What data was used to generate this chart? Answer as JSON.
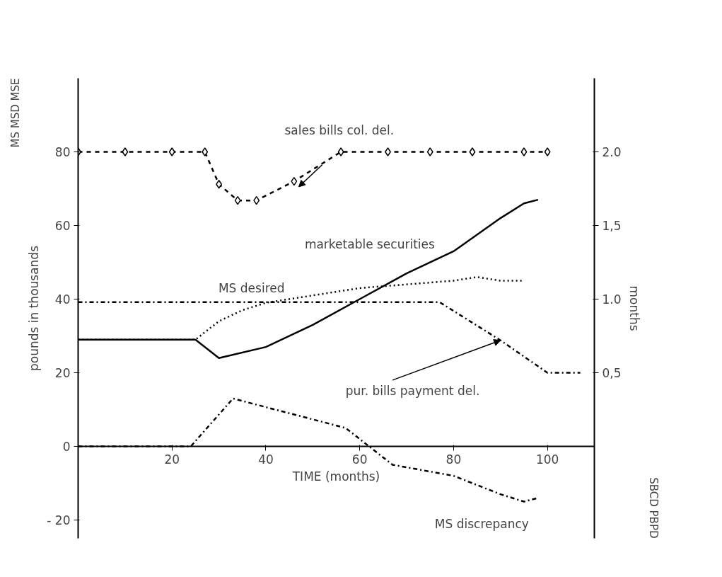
{
  "chart_data": {
    "type": "line",
    "ylabel": "pounds in thousands",
    "y2label": "months",
    "xlabel": "TIME (months)",
    "annotations": [
      "MS MSD MSE",
      "SBCD PBPD"
    ],
    "xlim": [
      0,
      110
    ],
    "xticks": [
      20,
      40,
      60,
      80,
      100
    ],
    "ylim": [
      -25,
      100
    ],
    "yticks": [
      {
        "value": -20,
        "label": "- 20"
      },
      0,
      20,
      40,
      60,
      80
    ],
    "y2lim": [
      -0.625,
      2.5
    ],
    "y2ticks": [
      {
        "value": 0.5,
        "label": "0,5"
      },
      {
        "value": 1.0,
        "label": "1.0"
      },
      {
        "value": 1.5,
        "label": "1,5"
      },
      {
        "value": 2.0,
        "label": "2.0"
      }
    ],
    "grid": false,
    "series": [
      {
        "name": "sales bills col. del.",
        "color": "#000000",
        "axis": "y2",
        "line_style": "dashed",
        "marker": "diamond",
        "x": [
          0,
          10,
          20,
          27,
          30,
          34,
          38,
          46,
          56,
          66,
          75,
          84,
          95,
          100
        ],
        "values": [
          2.0,
          2.0,
          2.0,
          2.0,
          1.78,
          1.67,
          1.67,
          1.8,
          2.0,
          2.0,
          2.0,
          2.0,
          2.0,
          2.0
        ]
      },
      {
        "name": "marketable securities",
        "color": "#000000",
        "line_style": "solid",
        "x": [
          0,
          25,
          30,
          40,
          50,
          60,
          70,
          80,
          90,
          95,
          98
        ],
        "values": [
          29,
          29,
          24,
          27,
          33,
          40,
          47,
          53,
          62,
          66,
          67
        ]
      },
      {
        "name": "MS desired",
        "color": "#000000",
        "line_style": "dotted",
        "x": [
          0,
          25,
          30,
          35,
          40,
          45,
          50,
          60,
          70,
          80,
          85,
          90,
          95
        ],
        "values": [
          29,
          29,
          34,
          37,
          39,
          40,
          41,
          43,
          44,
          45,
          46,
          45,
          45
        ]
      },
      {
        "name": "pur. bills payment del.",
        "color": "#000000",
        "axis": "y2",
        "line_style": "dashdot",
        "x": [
          0,
          20,
          40,
          60,
          77,
          90,
          100,
          107
        ],
        "values": [
          0.98,
          0.98,
          0.98,
          0.98,
          0.98,
          0.72,
          0.5,
          0.5
        ]
      },
      {
        "name": "MS discrepancy",
        "color": "#000000",
        "line_style": "dashdot",
        "x": [
          0,
          24,
          33,
          45,
          57,
          62,
          67,
          80,
          90,
          95,
          98
        ],
        "values": [
          0,
          0,
          13,
          9,
          5,
          0,
          -5,
          -8,
          -13,
          -15,
          -14
        ]
      }
    ]
  }
}
